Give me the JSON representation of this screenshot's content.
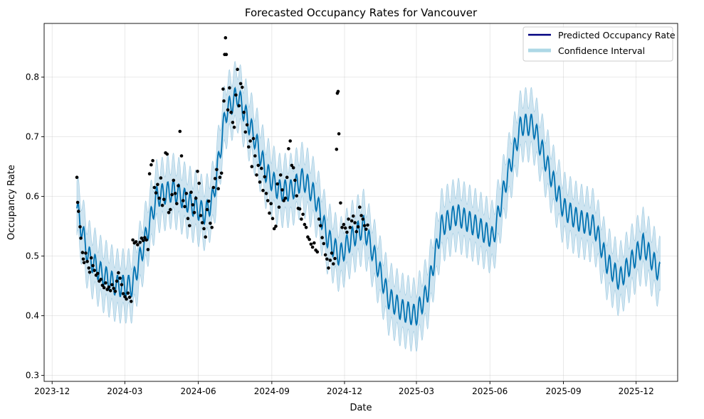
{
  "chart_data": {
    "type": "line",
    "title": "Forecasted Occupancy Rates for Vancouver",
    "xlabel": "Date",
    "ylabel": "Occupancy Rate",
    "x_ticks": [
      "2023-12",
      "2024-03",
      "2024-06",
      "2024-09",
      "2024-12",
      "2025-03",
      "2025-06",
      "2025-09",
      "2025-12"
    ],
    "y_ticks": [
      "0.3",
      "0.4",
      "0.5",
      "0.6",
      "0.7",
      "0.8"
    ],
    "xlim": [
      "2023-11-21",
      "2026-01-22"
    ],
    "ylim": [
      0.29,
      0.89
    ],
    "grid": true,
    "legend_position": "top-right",
    "legend": [
      {
        "label": "Predicted Occupancy Rate",
        "color": "#000080"
      },
      {
        "label": "Confidence Interval",
        "color": "#add8e6"
      }
    ],
    "forecast": {
      "start": "2024-01-01",
      "end": "2025-12-31",
      "line_color": "#0072B2",
      "band_color": "#9ecae1",
      "knots": [
        [
          "2024-01-01",
          0.58
        ],
        [
          "2024-01-15",
          0.5
        ],
        [
          "2024-02-01",
          0.47
        ],
        [
          "2024-02-20",
          0.45
        ],
        [
          "2024-03-10",
          0.45
        ],
        [
          "2024-03-25",
          0.52
        ],
        [
          "2024-04-10",
          0.6
        ],
        [
          "2024-05-01",
          0.61
        ],
        [
          "2024-05-20",
          0.59
        ],
        [
          "2024-06-10",
          0.57
        ],
        [
          "2024-06-20",
          0.6
        ],
        [
          "2024-07-05",
          0.74
        ],
        [
          "2024-07-20",
          0.77
        ],
        [
          "2024-08-10",
          0.7
        ],
        [
          "2024-08-25",
          0.64
        ],
        [
          "2024-09-10",
          0.61
        ],
        [
          "2024-09-25",
          0.61
        ],
        [
          "2024-10-10",
          0.63
        ],
        [
          "2024-10-25",
          0.6
        ],
        [
          "2024-11-10",
          0.53
        ],
        [
          "2024-11-25",
          0.5
        ],
        [
          "2024-12-10",
          0.53
        ],
        [
          "2024-12-25",
          0.55
        ],
        [
          "2025-01-10",
          0.49
        ],
        [
          "2025-01-25",
          0.43
        ],
        [
          "2025-02-10",
          0.41
        ],
        [
          "2025-02-28",
          0.4
        ],
        [
          "2025-03-15",
          0.44
        ],
        [
          "2025-04-01",
          0.55
        ],
        [
          "2025-04-20",
          0.57
        ],
        [
          "2025-05-15",
          0.55
        ],
        [
          "2025-06-05",
          0.53
        ],
        [
          "2025-06-20",
          0.62
        ],
        [
          "2025-07-10",
          0.72
        ],
        [
          "2025-07-25",
          0.72
        ],
        [
          "2025-08-15",
          0.64
        ],
        [
          "2025-09-01",
          0.58
        ],
        [
          "2025-09-20",
          0.56
        ],
        [
          "2025-10-10",
          0.55
        ],
        [
          "2025-10-25",
          0.49
        ],
        [
          "2025-11-10",
          0.46
        ],
        [
          "2025-11-25",
          0.49
        ],
        [
          "2025-12-10",
          0.52
        ],
        [
          "2025-12-31",
          0.47
        ]
      ],
      "weekly_amplitude": 0.018,
      "interval_halfwidth": 0.045
    },
    "observed": [
      [
        "2024-01-01",
        0.632
      ],
      [
        "2024-01-02",
        0.59
      ],
      [
        "2024-01-03",
        0.575
      ],
      [
        "2024-01-05",
        0.549
      ],
      [
        "2024-01-06",
        0.53
      ],
      [
        "2024-01-08",
        0.506
      ],
      [
        "2024-01-09",
        0.495
      ],
      [
        "2024-01-10",
        0.489
      ],
      [
        "2024-01-12",
        0.505
      ],
      [
        "2024-01-14",
        0.491
      ],
      [
        "2024-01-16",
        0.48
      ],
      [
        "2024-01-17",
        0.473
      ],
      [
        "2024-01-19",
        0.497
      ],
      [
        "2024-01-21",
        0.484
      ],
      [
        "2024-01-23",
        0.476
      ],
      [
        "2024-01-25",
        0.468
      ],
      [
        "2024-01-27",
        0.471
      ],
      [
        "2024-01-29",
        0.458
      ],
      [
        "2024-01-31",
        0.461
      ],
      [
        "2024-02-02",
        0.451
      ],
      [
        "2024-02-04",
        0.447
      ],
      [
        "2024-02-06",
        0.455
      ],
      [
        "2024-02-08",
        0.444
      ],
      [
        "2024-02-10",
        0.448
      ],
      [
        "2024-02-12",
        0.442
      ],
      [
        "2024-02-14",
        0.452
      ],
      [
        "2024-02-16",
        0.446
      ],
      [
        "2024-02-18",
        0.441
      ],
      [
        "2024-02-20",
        0.458
      ],
      [
        "2024-02-22",
        0.472
      ],
      [
        "2024-02-24",
        0.463
      ],
      [
        "2024-02-26",
        0.452
      ],
      [
        "2024-02-28",
        0.437
      ],
      [
        "2024-03-01",
        0.432
      ],
      [
        "2024-03-03",
        0.428
      ],
      [
        "2024-03-05",
        0.438
      ],
      [
        "2024-03-07",
        0.431
      ],
      [
        "2024-03-09",
        0.424
      ],
      [
        "2024-03-11",
        0.527
      ],
      [
        "2024-03-13",
        0.522
      ],
      [
        "2024-03-15",
        0.524
      ],
      [
        "2024-03-17",
        0.519
      ],
      [
        "2024-03-20",
        0.523
      ],
      [
        "2024-03-22",
        0.53
      ],
      [
        "2024-03-24",
        0.526
      ],
      [
        "2024-03-26",
        0.531
      ],
      [
        "2024-03-28",
        0.527
      ],
      [
        "2024-03-30",
        0.511
      ],
      [
        "2024-04-01",
        0.638
      ],
      [
        "2024-04-03",
        0.653
      ],
      [
        "2024-04-05",
        0.66
      ],
      [
        "2024-04-07",
        0.615
      ],
      [
        "2024-04-09",
        0.606
      ],
      [
        "2024-04-11",
        0.62
      ],
      [
        "2024-04-13",
        0.597
      ],
      [
        "2024-04-15",
        0.631
      ],
      [
        "2024-04-17",
        0.585
      ],
      [
        "2024-04-19",
        0.595
      ],
      [
        "2024-04-21",
        0.673
      ],
      [
        "2024-04-23",
        0.671
      ],
      [
        "2024-04-25",
        0.573
      ],
      [
        "2024-04-27",
        0.578
      ],
      [
        "2024-04-29",
        0.603
      ],
      [
        "2024-05-01",
        0.627
      ],
      [
        "2024-05-03",
        0.605
      ],
      [
        "2024-05-05",
        0.588
      ],
      [
        "2024-05-07",
        0.618
      ],
      [
        "2024-05-09",
        0.709
      ],
      [
        "2024-05-11",
        0.668
      ],
      [
        "2024-05-13",
        0.593
      ],
      [
        "2024-05-15",
        0.583
      ],
      [
        "2024-05-17",
        0.605
      ],
      [
        "2024-05-19",
        0.563
      ],
      [
        "2024-05-21",
        0.551
      ],
      [
        "2024-05-23",
        0.607
      ],
      [
        "2024-05-25",
        0.586
      ],
      [
        "2024-05-27",
        0.573
      ],
      [
        "2024-05-29",
        0.597
      ],
      [
        "2024-05-31",
        0.642
      ],
      [
        "2024-06-02",
        0.622
      ],
      [
        "2024-06-04",
        0.568
      ],
      [
        "2024-06-06",
        0.556
      ],
      [
        "2024-06-08",
        0.546
      ],
      [
        "2024-06-10",
        0.532
      ],
      [
        "2024-06-12",
        0.578
      ],
      [
        "2024-06-14",
        0.592
      ],
      [
        "2024-06-16",
        0.555
      ],
      [
        "2024-06-18",
        0.548
      ],
      [
        "2024-06-20",
        0.615
      ],
      [
        "2024-06-22",
        0.63
      ],
      [
        "2024-06-24",
        0.645
      ],
      [
        "2024-06-26",
        0.613
      ],
      [
        "2024-06-28",
        0.632
      ],
      [
        "2024-06-30",
        0.639
      ],
      [
        "2024-07-02",
        0.78
      ],
      [
        "2024-07-03",
        0.76
      ],
      [
        "2024-07-04",
        0.838
      ],
      [
        "2024-07-05",
        0.866
      ],
      [
        "2024-07-06",
        0.838
      ],
      [
        "2024-07-08",
        0.745
      ],
      [
        "2024-07-10",
        0.782
      ],
      [
        "2024-07-12",
        0.741
      ],
      [
        "2024-07-14",
        0.724
      ],
      [
        "2024-07-16",
        0.716
      ],
      [
        "2024-07-18",
        0.77
      ],
      [
        "2024-07-20",
        0.813
      ],
      [
        "2024-07-22",
        0.752
      ],
      [
        "2024-07-24",
        0.789
      ],
      [
        "2024-07-26",
        0.783
      ],
      [
        "2024-07-28",
        0.741
      ],
      [
        "2024-07-30",
        0.708
      ],
      [
        "2024-08-01",
        0.72
      ],
      [
        "2024-08-03",
        0.683
      ],
      [
        "2024-08-05",
        0.693
      ],
      [
        "2024-08-07",
        0.65
      ],
      [
        "2024-08-09",
        0.697
      ],
      [
        "2024-08-11",
        0.668
      ],
      [
        "2024-08-13",
        0.636
      ],
      [
        "2024-08-15",
        0.652
      ],
      [
        "2024-08-17",
        0.624
      ],
      [
        "2024-08-19",
        0.647
      ],
      [
        "2024-08-21",
        0.61
      ],
      [
        "2024-08-23",
        0.633
      ],
      [
        "2024-08-25",
        0.605
      ],
      [
        "2024-08-27",
        0.593
      ],
      [
        "2024-08-29",
        0.572
      ],
      [
        "2024-08-31",
        0.588
      ],
      [
        "2024-09-02",
        0.563
      ],
      [
        "2024-09-04",
        0.546
      ],
      [
        "2024-09-06",
        0.55
      ],
      [
        "2024-09-08",
        0.621
      ],
      [
        "2024-09-10",
        0.582
      ],
      [
        "2024-09-12",
        0.636
      ],
      [
        "2024-09-14",
        0.611
      ],
      [
        "2024-09-16",
        0.593
      ],
      [
        "2024-09-18",
        0.597
      ],
      [
        "2024-09-20",
        0.632
      ],
      [
        "2024-09-22",
        0.68
      ],
      [
        "2024-09-24",
        0.693
      ],
      [
        "2024-09-26",
        0.652
      ],
      [
        "2024-09-28",
        0.648
      ],
      [
        "2024-09-30",
        0.627
      ],
      [
        "2024-10-02",
        0.601
      ],
      [
        "2024-10-04",
        0.58
      ],
      [
        "2024-10-06",
        0.579
      ],
      [
        "2024-10-08",
        0.562
      ],
      [
        "2024-10-10",
        0.57
      ],
      [
        "2024-10-12",
        0.553
      ],
      [
        "2024-10-14",
        0.548
      ],
      [
        "2024-10-16",
        0.532
      ],
      [
        "2024-10-18",
        0.528
      ],
      [
        "2024-10-20",
        0.52
      ],
      [
        "2024-10-22",
        0.515
      ],
      [
        "2024-10-24",
        0.522
      ],
      [
        "2024-10-26",
        0.51
      ],
      [
        "2024-10-28",
        0.507
      ],
      [
        "2024-10-30",
        0.562
      ],
      [
        "2024-11-01",
        0.551
      ],
      [
        "2024-11-03",
        0.531
      ],
      [
        "2024-11-05",
        0.521
      ],
      [
        "2024-11-07",
        0.502
      ],
      [
        "2024-11-09",
        0.495
      ],
      [
        "2024-11-11",
        0.48
      ],
      [
        "2024-11-13",
        0.493
      ],
      [
        "2024-11-15",
        0.505
      ],
      [
        "2024-11-17",
        0.487
      ],
      [
        "2024-11-19",
        0.496
      ],
      [
        "2024-11-21",
        0.679
      ],
      [
        "2024-11-22",
        0.773
      ],
      [
        "2024-11-23",
        0.776
      ],
      [
        "2024-11-24",
        0.705
      ],
      [
        "2024-11-26",
        0.589
      ],
      [
        "2024-11-28",
        0.548
      ],
      [
        "2024-11-30",
        0.553
      ],
      [
        "2024-12-02",
        0.547
      ],
      [
        "2024-12-04",
        0.54
      ],
      [
        "2024-12-06",
        0.562
      ],
      [
        "2024-12-08",
        0.548
      ],
      [
        "2024-12-10",
        0.559
      ],
      [
        "2024-12-12",
        0.567
      ],
      [
        "2024-12-14",
        0.556
      ],
      [
        "2024-12-16",
        0.541
      ],
      [
        "2024-12-18",
        0.549
      ],
      [
        "2024-12-20",
        0.582
      ],
      [
        "2024-12-22",
        0.568
      ],
      [
        "2024-12-24",
        0.562
      ],
      [
        "2024-12-26",
        0.551
      ],
      [
        "2024-12-28",
        0.545
      ],
      [
        "2024-12-30",
        0.552
      ]
    ]
  }
}
